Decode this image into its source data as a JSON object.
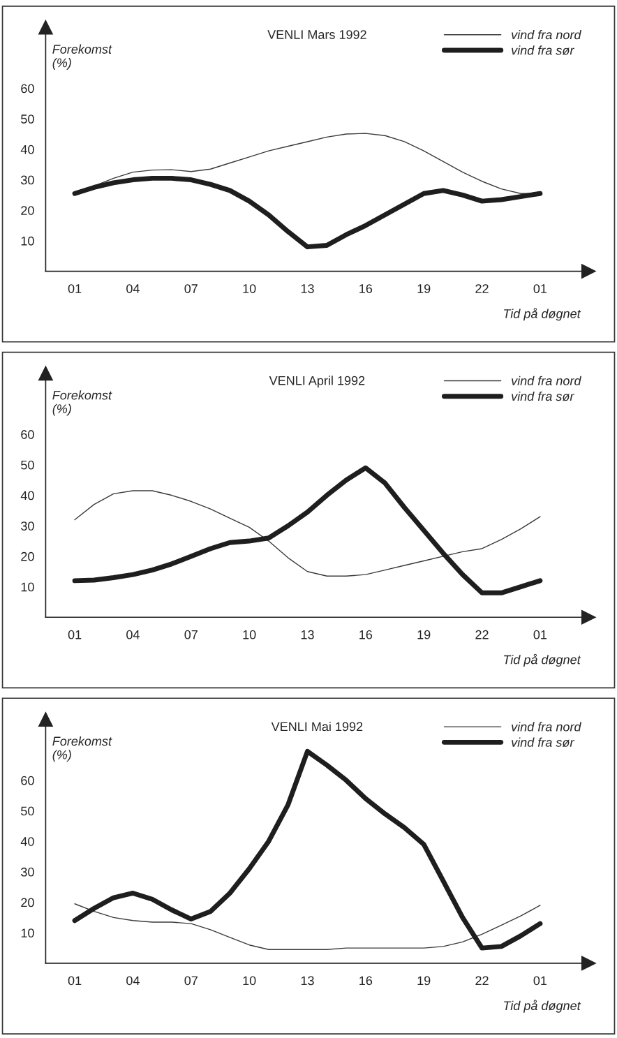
{
  "chart_data": [
    {
      "type": "line",
      "title": "VENLI Mars 1992",
      "xlabel": "Tid på døgnet",
      "ylabel": "Forekomst\n(%)",
      "categories": [
        "01",
        null,
        null,
        "04",
        null,
        null,
        "07",
        null,
        null,
        "10",
        null,
        null,
        "13",
        null,
        null,
        "16",
        null,
        null,
        "19",
        null,
        null,
        "22",
        null,
        null,
        "01"
      ],
      "ylim": [
        0,
        80
      ],
      "yticks": [
        10,
        20,
        30,
        40,
        50,
        60
      ],
      "grid": false,
      "legend": "top right",
      "marker": "none",
      "line_style": "solid",
      "series": [
        {
          "name": "vind fra nord",
          "color": "#3a3a3a",
          "values": [
            25.5,
            28,
            30.5,
            32.5,
            33.2,
            33.3,
            32.7,
            33.5,
            35.5,
            37.5,
            39.5,
            41,
            42.5,
            44,
            45,
            45.2,
            44.5,
            42.5,
            39.5,
            36,
            32.5,
            29.5,
            27,
            25.5,
            25.5
          ]
        },
        {
          "name": "vind fra sør",
          "color": "#1e1e1e",
          "values": [
            25.5,
            27.5,
            29,
            30,
            30.5,
            30.5,
            30,
            28.5,
            26.5,
            23,
            18.5,
            13,
            8,
            8.5,
            12,
            15,
            18.5,
            22,
            25.5,
            26.5,
            25,
            23,
            23.5,
            24.5,
            25.5
          ]
        }
      ]
    },
    {
      "type": "line",
      "title": "VENLI April 1992",
      "xlabel": "Tid på døgnet",
      "ylabel": "Forekomst\n(%)",
      "categories": [
        "01",
        null,
        null,
        "04",
        null,
        null,
        "07",
        null,
        null,
        "10",
        null,
        null,
        "13",
        null,
        null,
        "16",
        null,
        null,
        "19",
        null,
        null,
        "22",
        null,
        null,
        "01"
      ],
      "ylim": [
        0,
        80
      ],
      "yticks": [
        10,
        20,
        30,
        40,
        50,
        60
      ],
      "grid": false,
      "legend": "top right",
      "marker": "none",
      "line_style": "solid",
      "series": [
        {
          "name": "vind fra nord",
          "color": "#3a3a3a",
          "values": [
            32,
            37,
            40.5,
            41.5,
            41.5,
            40,
            38,
            35.5,
            32.5,
            29.5,
            25,
            19.5,
            15,
            13.5,
            13.5,
            14,
            15.5,
            17,
            18.5,
            20,
            21.5,
            22.5,
            25.5,
            29,
            33
          ]
        },
        {
          "name": "vind fra sør",
          "color": "#1e1e1e",
          "values": [
            12,
            12.2,
            13,
            14,
            15.5,
            17.5,
            20,
            22.5,
            24.5,
            25,
            26,
            30,
            34.5,
            40,
            45,
            49,
            44,
            36,
            28.5,
            21,
            14,
            8,
            8,
            10,
            12
          ]
        }
      ]
    },
    {
      "type": "line",
      "title": "VENLI Mai 1992",
      "xlabel": "Tid på døgnet",
      "ylabel": "Forekomst\n(%)",
      "categories": [
        "01",
        null,
        null,
        "04",
        null,
        null,
        "07",
        null,
        null,
        "10",
        null,
        null,
        "13",
        null,
        null,
        "16",
        null,
        null,
        "19",
        null,
        null,
        "22",
        null,
        null,
        "01"
      ],
      "ylim": [
        0,
        80
      ],
      "yticks": [
        10,
        20,
        30,
        40,
        50,
        60
      ],
      "grid": false,
      "legend": "top right",
      "marker": "none",
      "line_style": "solid",
      "series": [
        {
          "name": "vind fra nord",
          "color": "#3a3a3a",
          "values": [
            19.5,
            17,
            15,
            14,
            13.5,
            13.5,
            13,
            11,
            8.5,
            6,
            4.5,
            4.5,
            4.5,
            4.5,
            5,
            5,
            5,
            5,
            5,
            5.5,
            7,
            9.5,
            12.5,
            15.5,
            19
          ]
        },
        {
          "name": "vind fra sør",
          "color": "#1e1e1e",
          "values": [
            14,
            18,
            21.5,
            23,
            21,
            17.5,
            14.5,
            17,
            23,
            31,
            40,
            52,
            69.5,
            65,
            60,
            54,
            49,
            44.5,
            39,
            27,
            15,
            5,
            5.5,
            9,
            13
          ]
        }
      ]
    }
  ]
}
